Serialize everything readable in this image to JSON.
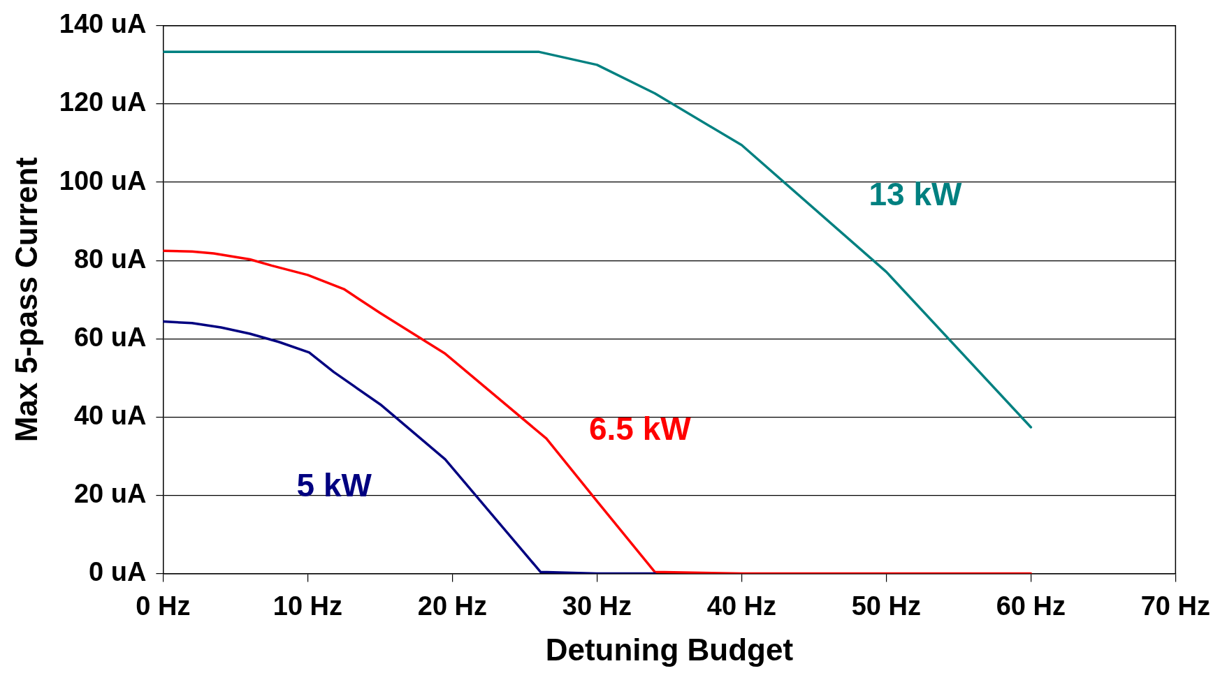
{
  "chart_data": {
    "type": "line",
    "xlabel": "Detuning Budget",
    "ylabel": "Max 5-pass Current",
    "xlim": [
      0,
      70
    ],
    "xticks": [
      {
        "value": 0,
        "label": "0 Hz"
      },
      {
        "value": 10,
        "label": "10 Hz"
      },
      {
        "value": 20,
        "label": "20 Hz"
      },
      {
        "value": 30,
        "label": "30 Hz"
      },
      {
        "value": 40,
        "label": "40 Hz"
      },
      {
        "value": 50,
        "label": "50 Hz"
      },
      {
        "value": 60,
        "label": "60 Hz"
      },
      {
        "value": 70,
        "label": "70 Hz"
      }
    ],
    "ylim": [
      0,
      140
    ],
    "yticks": [
      {
        "value": 0,
        "label": "0 uA"
      },
      {
        "value": 20,
        "label": "20 uA"
      },
      {
        "value": 40,
        "label": "40 uA"
      },
      {
        "value": 60,
        "label": "60 uA"
      },
      {
        "value": 80,
        "label": "80 uA"
      },
      {
        "value": 100,
        "label": "100 uA"
      },
      {
        "value": 120,
        "label": "120 uA"
      },
      {
        "value": 140,
        "label": "140 uA"
      }
    ],
    "grid": "y",
    "legend": false,
    "marker": "none",
    "line_style": "solid",
    "series": [
      {
        "name": "5 kW",
        "color": "#000080",
        "x": [
          0,
          2,
          4,
          6,
          8,
          10.1,
          11.8,
          15.1,
          19.5,
          26.1,
          30,
          34
        ],
        "values": [
          64.4,
          64,
          62.9,
          61.3,
          59.2,
          56.5,
          51.5,
          43,
          29.2,
          0.4,
          0,
          0
        ]
      },
      {
        "name": "6.5 kW",
        "color": "#ff0000",
        "x": [
          0,
          2,
          3.5,
          6,
          7.5,
          10,
          12.5,
          15,
          19.5,
          26.5,
          30,
          34,
          40,
          50,
          60
        ],
        "values": [
          82.5,
          82.3,
          81.8,
          80.3,
          78.7,
          76.3,
          72.7,
          66.6,
          56.2,
          34.5,
          18.5,
          0.4,
          0,
          0,
          0
        ]
      },
      {
        "name": "13 kW",
        "color": "#008080",
        "x": [
          0,
          26,
          30,
          34,
          40,
          50,
          60
        ],
        "values": [
          133.3,
          133.3,
          130,
          122.7,
          109.5,
          77.1,
          37.4
        ]
      }
    ]
  }
}
